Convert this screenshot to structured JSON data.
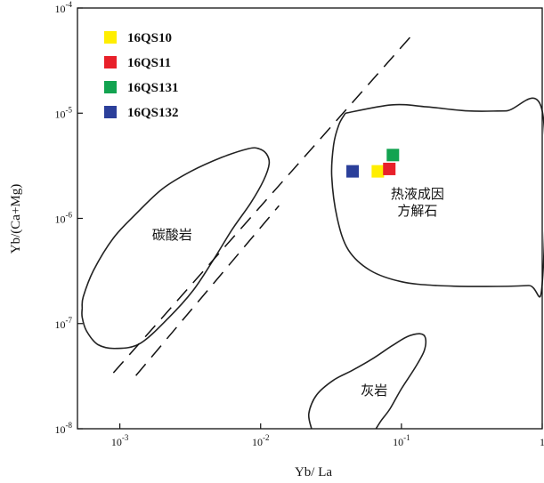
{
  "chart_data": {
    "type": "scatter",
    "xlabel": "Yb/ La",
    "ylabel": "Yb/(Ca+Mg)",
    "x_scale": "log",
    "y_scale": "log",
    "xlim": [
      0.0005,
      1
    ],
    "ylim": [
      1e-08,
      0.0001
    ],
    "grid": false,
    "legend_position": "top-left",
    "x_ticks": [
      {
        "value": 0.001,
        "base": "10",
        "exp": "-3"
      },
      {
        "value": 0.01,
        "base": "10",
        "exp": "-2"
      },
      {
        "value": 0.1,
        "base": "10",
        "exp": "-1"
      },
      {
        "value": 1,
        "base": "1",
        "exp": ""
      }
    ],
    "y_ticks": [
      {
        "value": 0.0001,
        "base": "10",
        "exp": "-4"
      },
      {
        "value": 1e-05,
        "base": "10",
        "exp": "-5"
      },
      {
        "value": 1e-06,
        "base": "10",
        "exp": "-6"
      },
      {
        "value": 1e-07,
        "base": "10",
        "exp": "-7"
      },
      {
        "value": 1e-08,
        "base": "10",
        "exp": "-8"
      }
    ],
    "series": [
      {
        "name": "16QS10",
        "color": "#FFEE00",
        "points": [
          {
            "x": 0.068,
            "y": 2.8e-06
          }
        ]
      },
      {
        "name": "16QS11",
        "color": "#E8202A",
        "points": [
          {
            "x": 0.082,
            "y": 2.95e-06
          }
        ]
      },
      {
        "name": "16QS131",
        "color": "#12A350",
        "points": [
          {
            "x": 0.087,
            "y": 4e-06
          }
        ]
      },
      {
        "name": "16QS132",
        "color": "#2B3F9A",
        "points": [
          {
            "x": 0.045,
            "y": 2.8e-06
          }
        ]
      }
    ],
    "regions": [
      {
        "label": "碳酸岩",
        "label_at": [
          0.00235,
          6.3e-07
        ],
        "outline": [
          [
            0.00054,
            1.4e-07
          ],
          [
            0.00055,
            1.8e-07
          ],
          [
            0.00065,
            3.2e-07
          ],
          [
            0.0009,
            6.5e-07
          ],
          [
            0.0013,
            1.1e-06
          ],
          [
            0.002,
            1.9e-06
          ],
          [
            0.0032,
            2.8e-06
          ],
          [
            0.0053,
            3.8e-06
          ],
          [
            0.0082,
            4.6e-06
          ],
          [
            0.0097,
            4.6e-06
          ],
          [
            0.011,
            4.1e-06
          ],
          [
            0.0115,
            3.3e-06
          ],
          [
            0.0105,
            2.3e-06
          ],
          [
            0.0085,
            1.4e-06
          ],
          [
            0.0063,
            7.9e-07
          ],
          [
            0.0046,
            4e-07
          ],
          [
            0.0033,
            2.05e-07
          ],
          [
            0.0022,
            1.12e-07
          ],
          [
            0.0014,
            6.5e-08
          ],
          [
            0.00095,
            5.8e-08
          ],
          [
            0.0007,
            6.3e-08
          ],
          [
            0.00058,
            8.5e-08
          ],
          [
            0.00054,
            1.15e-07
          ],
          [
            0.00054,
            1.4e-07
          ]
        ]
      },
      {
        "label": "热液成因",
        "label_line2": "方解石",
        "label_at": [
          0.13,
          1.55e-06
        ],
        "outline": [
          [
            0.04,
            1e-05
          ],
          [
            0.085,
            1.2e-05
          ],
          [
            0.15,
            1.15e-05
          ],
          [
            0.3,
            1.05e-05
          ],
          [
            0.55,
            1.05e-05
          ],
          [
            1,
            1.05e-05
          ],
          [
            1,
            2.4e-07
          ],
          [
            0.8,
            2.3e-07
          ],
          [
            0.4,
            2.25e-07
          ],
          [
            0.18,
            2.3e-07
          ],
          [
            0.1,
            2.5e-07
          ],
          [
            0.06,
            3.2e-07
          ],
          [
            0.042,
            5e-07
          ],
          [
            0.035,
            1e-06
          ],
          [
            0.032,
            2.5e-06
          ],
          [
            0.033,
            5e-06
          ],
          [
            0.036,
            7.8e-06
          ],
          [
            0.04,
            1e-05
          ]
        ]
      },
      {
        "label": "灰岩",
        "label_at": [
          0.064,
          2.1e-08
        ],
        "outline": [
          [
            0.023,
            1e-08
          ],
          [
            0.022,
            1.4e-08
          ],
          [
            0.025,
            2.1e-08
          ],
          [
            0.033,
            2.9e-08
          ],
          [
            0.045,
            3.6e-08
          ],
          [
            0.062,
            4.6e-08
          ],
          [
            0.085,
            6.1e-08
          ],
          [
            0.11,
            7.5e-08
          ],
          [
            0.135,
            8e-08
          ],
          [
            0.148,
            7.3e-08
          ],
          [
            0.145,
            5.5e-08
          ],
          [
            0.125,
            3.8e-08
          ],
          [
            0.1,
            2.4e-08
          ],
          [
            0.083,
            1.55e-08
          ],
          [
            0.072,
            1.2e-08
          ],
          [
            0.066,
            1e-08
          ]
        ]
      }
    ],
    "dashed_lines": [
      [
        [
          0.0009,
          3.4e-08
        ],
        [
          0.12,
          5.6e-05
        ]
      ],
      [
        [
          0.0013,
          3.2e-08
        ],
        [
          0.0135,
          1.32e-06
        ]
      ]
    ]
  }
}
